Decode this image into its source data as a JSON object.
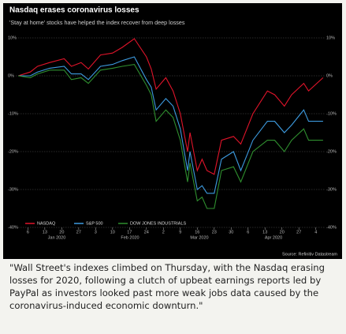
{
  "chart_data": {
    "type": "line",
    "title": "Nasdaq erases coronavirus losses",
    "subtitle": "'Stay at home' stocks have helped the index recover from deep losses",
    "source": "Source: Refinitiv Datastream",
    "x": [
      "2020-01-02",
      "2020-01-07",
      "2020-01-10",
      "2020-01-15",
      "2020-01-21",
      "2020-01-24",
      "2020-01-28",
      "2020-01-31",
      "2020-02-05",
      "2020-02-10",
      "2020-02-14",
      "2020-02-19",
      "2020-02-24",
      "2020-02-26",
      "2020-02-28",
      "2020-03-03",
      "2020-03-06",
      "2020-03-09",
      "2020-03-12",
      "2020-03-13",
      "2020-03-16",
      "2020-03-18",
      "2020-03-20",
      "2020-03-23",
      "2020-03-26",
      "2020-03-31",
      "2020-04-03",
      "2020-04-08",
      "2020-04-14",
      "2020-04-17",
      "2020-04-21",
      "2020-04-24",
      "2020-04-29",
      "2020-05-01",
      "2020-05-07"
    ],
    "series": [
      {
        "name": "NASDAQ",
        "color": "#e0142a",
        "values": [
          0,
          1,
          2.5,
          3.5,
          4.5,
          2.5,
          3.5,
          1.8,
          5.5,
          6,
          7.5,
          9.8,
          5,
          1.8,
          -3.5,
          -0.5,
          -4,
          -10,
          -20,
          -15,
          -25,
          -22,
          -25,
          -26,
          -17,
          -16,
          -18,
          -10,
          -4,
          -5,
          -8,
          -5,
          -2,
          -4,
          -0.5
        ]
      },
      {
        "name": "S&P 500",
        "color": "#3d9be0",
        "values": [
          0,
          0,
          1,
          2,
          2.5,
          0.5,
          0.5,
          -1,
          2.5,
          3,
          4,
          5,
          -1,
          -3,
          -9,
          -6,
          -8,
          -14,
          -25,
          -20,
          -30,
          -29,
          -31,
          -31,
          -22,
          -20,
          -25,
          -17,
          -12,
          -12,
          -15,
          -13,
          -9,
          -12,
          -12
        ]
      },
      {
        "name": "DOW JONES INDUSTRIALS",
        "color": "#2f8f2f",
        "values": [
          0,
          -0.5,
          0.5,
          1.5,
          1.5,
          -1,
          -0.5,
          -2,
          1.5,
          2,
          2.5,
          3,
          -2.5,
          -5,
          -12,
          -9,
          -11,
          -17,
          -28,
          -23,
          -33,
          -32,
          -35,
          -35,
          -25,
          -24,
          -28,
          -20,
          -17,
          -17,
          -20,
          -17,
          -14,
          -17,
          -17
        ]
      }
    ],
    "xlim": [
      "2020-01-01",
      "2020-05-08"
    ],
    "xticks": [
      {
        "value": "2020-01-06",
        "label": "6"
      },
      {
        "value": "2020-01-13",
        "label": "13"
      },
      {
        "value": "2020-01-20",
        "label": "20"
      },
      {
        "value": "2020-01-27",
        "label": "27"
      },
      {
        "value": "2020-02-03",
        "label": "3"
      },
      {
        "value": "2020-02-10",
        "label": "10"
      },
      {
        "value": "2020-02-17",
        "label": "17"
      },
      {
        "value": "2020-02-24",
        "label": "24"
      },
      {
        "value": "2020-03-02",
        "label": "2"
      },
      {
        "value": "2020-03-09",
        "label": "9"
      },
      {
        "value": "2020-03-16",
        "label": "16"
      },
      {
        "value": "2020-03-23",
        "label": "23"
      },
      {
        "value": "2020-03-30",
        "label": "30"
      },
      {
        "value": "2020-04-06",
        "label": "6"
      },
      {
        "value": "2020-04-13",
        "label": "13"
      },
      {
        "value": "2020-04-20",
        "label": "20"
      },
      {
        "value": "2020-04-27",
        "label": "27"
      },
      {
        "value": "2020-05-04",
        "label": "4"
      }
    ],
    "month_labels": [
      "Jan 2020",
      "Feb 2020",
      "Mar 2020",
      "Apr 2020"
    ],
    "ylim": [
      -40,
      11
    ],
    "yticks": [
      {
        "value": 10,
        "label": "10%"
      },
      {
        "value": 0,
        "label": "0%"
      },
      {
        "value": -10,
        "label": "-10%"
      },
      {
        "value": -20,
        "label": "-20%"
      },
      {
        "value": -30,
        "label": "-30%"
      },
      {
        "value": -40,
        "label": "-40%"
      }
    ],
    "grid": true
  },
  "quote": "\"Wall Street's indexes climbed on Thursday, with the Nasdaq erasing losses for 2020, following a clutch of upbeat earnings reports led by PayPal as investors looked past more weak jobs data caused by the coronavirus-induced economic downturn.\""
}
